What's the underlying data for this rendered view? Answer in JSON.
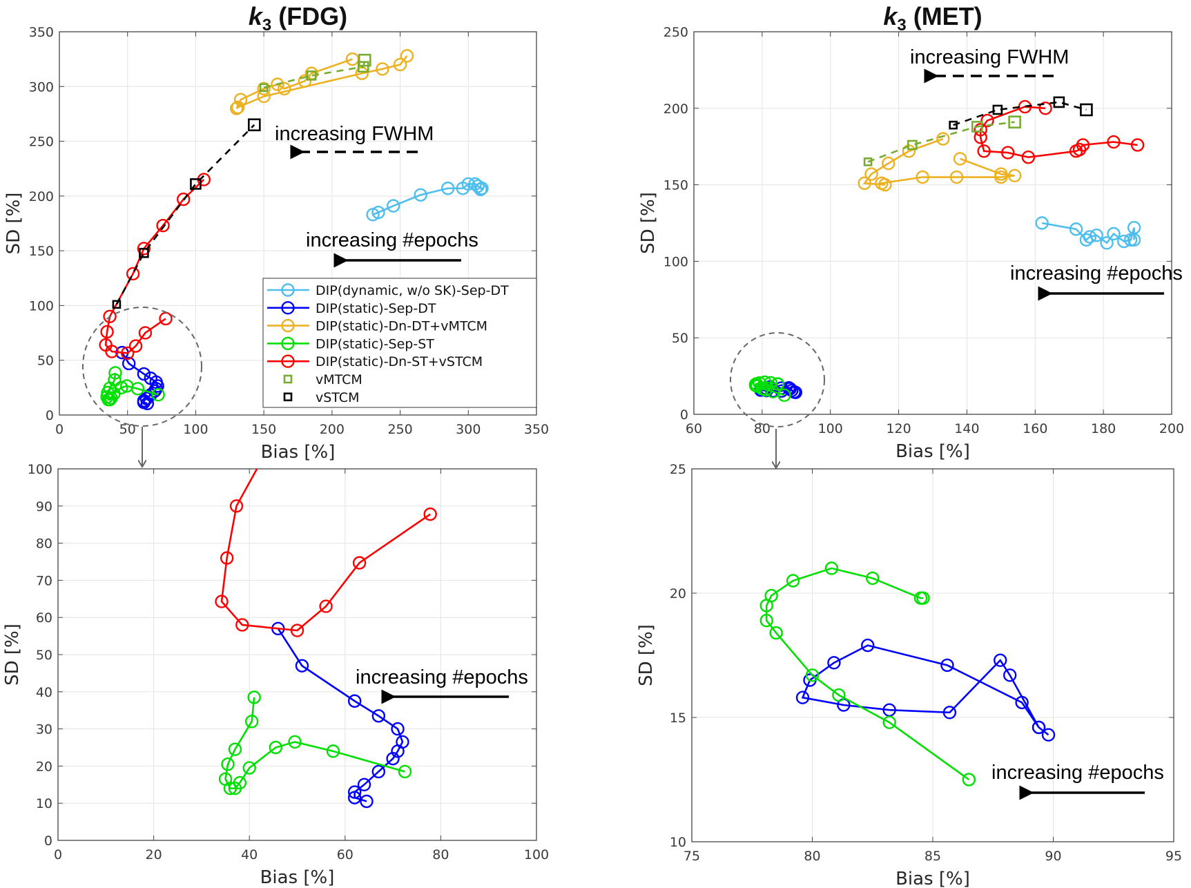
{
  "colors": {
    "DIP(dynamic, w/o SK)-Sep-DT": "#4DBEEE",
    "DIP(static)-Sep-DT": "#0000FF",
    "DIP(static)-Dn-DT+vMTCM": "#EDB120",
    "DIP(static)-Sep-ST": "#00E000",
    "DIP(static)-Dn-ST+vSTCM": "#FF0000",
    "vMTCM": "#77AC30",
    "vSTCM": "#000000"
  },
  "legend_placement": "lower-right (top-left panel)",
  "chart_data": [
    {
      "type": "line",
      "title_main": "k",
      "title_sub": "3",
      "title_rest": " (FDG)",
      "xlabel": "Bias [%]",
      "ylabel": "SD [%]",
      "xlim": [
        0,
        350
      ],
      "ylim": [
        0,
        350
      ],
      "xticks": [
        0,
        50,
        100,
        150,
        200,
        250,
        300,
        350
      ],
      "yticks": [
        0,
        50,
        100,
        150,
        200,
        250,
        300,
        350
      ],
      "grid": true,
      "legend": [
        "DIP(dynamic, w/o SK)-Sep-DT",
        "DIP(static)-Sep-DT",
        "DIP(static)-Dn-DT+vMTCM",
        "DIP(static)-Sep-ST",
        "DIP(static)-Dn-ST+vSTCM",
        "vMTCM",
        "vSTCM"
      ],
      "annotations": [
        "increasing FWHM",
        "increasing #epochs"
      ],
      "series": [
        {
          "name": "DIP(dynamic, w/o SK)-Sep-DT",
          "marker": "circle",
          "x": [
            230,
            234,
            245,
            265,
            285,
            296,
            300,
            305,
            307,
            310,
            309
          ],
          "y": [
            183,
            185,
            191,
            201,
            207,
            207,
            211,
            211,
            209,
            207,
            206
          ]
        },
        {
          "name": "DIP(static)-Sep-DT",
          "marker": "circle",
          "x": [
            46,
            51,
            62,
            67,
            71,
            72,
            71,
            70,
            67,
            64,
            62,
            62,
            64.5
          ],
          "y": [
            57,
            47,
            37.5,
            33.5,
            30,
            26.5,
            24,
            22,
            18.5,
            15,
            13,
            11.5,
            10.5
          ]
        },
        {
          "name": "DIP(static)-Dn-DT+vMTCM",
          "marker": "circle",
          "x": [
            215,
            185,
            180,
            165,
            160,
            150,
            133,
            130,
            131,
            150,
            222,
            237,
            250,
            255
          ],
          "y": [
            325,
            312,
            305,
            298,
            302,
            298,
            288,
            280,
            281,
            291,
            312,
            316,
            320,
            328
          ]
        },
        {
          "name": "DIP(static)-Sep-ST",
          "marker": "circle",
          "x": [
            41,
            40.5,
            37,
            35.5,
            35,
            36,
            37,
            38,
            40,
            45.5,
            49.5,
            57.5,
            72.5
          ],
          "y": [
            38.5,
            32,
            24.5,
            20.5,
            16.5,
            14,
            14,
            15.5,
            19.5,
            25,
            26.5,
            24,
            18.5
          ]
        },
        {
          "name": "DIP(static)-Dn-ST+vSTCM",
          "marker": "circle",
          "x": [
            106,
            91,
            76,
            62,
            54,
            37,
            35,
            34,
            38.5,
            50,
            56,
            63,
            78
          ],
          "y": [
            215,
            197,
            173,
            152,
            129,
            90,
            76,
            64,
            58,
            56.5,
            63,
            75,
            88
          ]
        },
        {
          "name": "vMTCM",
          "marker": "square",
          "dashed": true,
          "x": [
            150,
            185,
            223,
            224
          ],
          "y": [
            299,
            310,
            318,
            324
          ]
        },
        {
          "name": "vSTCM",
          "marker": "square",
          "dashed": true,
          "x": [
            42,
            62,
            100,
            143
          ],
          "y": [
            101,
            148,
            211,
            265
          ]
        }
      ]
    },
    {
      "type": "line",
      "title_main": "k",
      "title_sub": "3",
      "title_rest": " (MET)",
      "xlabel": "Bias [%]",
      "ylabel": "SD [%]",
      "xlim": [
        60,
        200
      ],
      "ylim": [
        0,
        250
      ],
      "xticks": [
        60,
        80,
        100,
        120,
        140,
        160,
        180,
        200
      ],
      "yticks": [
        0,
        50,
        100,
        150,
        200,
        250
      ],
      "grid": true,
      "annotations": [
        "increasing FWHM",
        "increasing #epochs"
      ],
      "series": [
        {
          "name": "DIP(dynamic, w/o SK)-Sep-DT",
          "marker": "circle",
          "x": [
            162,
            172,
            175,
            176,
            178,
            181,
            183,
            186,
            188,
            189,
            189
          ],
          "y": [
            125,
            121,
            114,
            116,
            117,
            112,
            118,
            113,
            114,
            122,
            114
          ]
        },
        {
          "name": "DIP(static)-Sep-DT",
          "marker": "circle",
          "x": [
            89.8,
            89.4,
            88.7,
            85.6,
            82.3,
            80.9,
            79.9,
            79.6,
            81.3,
            83.2,
            85.7,
            87.8,
            88.2,
            89.4
          ],
          "y": [
            14.3,
            14.6,
            15.6,
            17.1,
            17.9,
            17.2,
            16.5,
            15.8,
            15.5,
            15.3,
            15.2,
            17.3,
            16.7,
            14.6
          ]
        },
        {
          "name": "DIP(static)-Dn-DT+vMTCM",
          "marker": "circle",
          "x": [
            133,
            123,
            117,
            112,
            110,
            116,
            115,
            127,
            137,
            150,
            154,
            150,
            138
          ],
          "y": [
            180,
            172,
            164,
            157,
            151,
            150,
            151,
            155,
            155,
            155,
            156,
            157,
            167
          ]
        },
        {
          "name": "DIP(static)-Sep-ST",
          "marker": "circle",
          "x": [
            86.5,
            83.2,
            81.1,
            80,
            78.5,
            78.1,
            78.1,
            78.3,
            79.2,
            80.8,
            82.5,
            84.5,
            84.6
          ],
          "y": [
            12.5,
            14.8,
            15.9,
            16.7,
            18.4,
            18.9,
            19.5,
            19.9,
            20.5,
            21,
            20.6,
            19.8,
            19.8
          ]
        },
        {
          "name": "DIP(static)-Dn-ST+vSTCM",
          "marker": "circle",
          "x": [
            163,
            157,
            146,
            144,
            144,
            145,
            152,
            158,
            172,
            173,
            174,
            183,
            190
          ],
          "y": [
            200,
            201,
            192,
            186,
            181,
            172,
            171,
            168,
            172,
            173,
            176,
            178,
            176
          ]
        },
        {
          "name": "vMTCM",
          "marker": "square",
          "dashed": true,
          "x": [
            111,
            124,
            143,
            154
          ],
          "y": [
            165,
            176,
            188,
            191
          ]
        },
        {
          "name": "vSTCM",
          "marker": "square",
          "dashed": true,
          "x": [
            136,
            149,
            167,
            175
          ],
          "y": [
            189,
            199,
            204,
            199
          ]
        }
      ]
    },
    {
      "type": "line",
      "xlabel": "Bias [%]",
      "ylabel": "SD [%]",
      "xlim": [
        0,
        100
      ],
      "ylim": [
        0,
        100
      ],
      "xticks": [
        0,
        20,
        40,
        60,
        80,
        100
      ],
      "yticks": [
        0,
        10,
        20,
        30,
        40,
        50,
        60,
        70,
        80,
        90,
        100
      ],
      "grid": true,
      "annotations": [
        "increasing #epochs"
      ],
      "series": [
        {
          "name": "DIP(static)-Sep-DT",
          "marker": "circle",
          "x": [
            46,
            51,
            62,
            67,
            71,
            72,
            71,
            70,
            67,
            64,
            62,
            62,
            64.5
          ],
          "y": [
            57,
            47,
            37.5,
            33.5,
            30,
            26.5,
            24,
            22,
            18.5,
            15,
            13,
            11.5,
            10.5
          ]
        },
        {
          "name": "DIP(static)-Sep-ST",
          "marker": "circle",
          "x": [
            41,
            40.5,
            37,
            35.5,
            35,
            36,
            37,
            38,
            40,
            45.5,
            49.5,
            57.5,
            72.5
          ],
          "y": [
            38.5,
            32,
            24.5,
            20.5,
            16.5,
            14,
            14,
            15.5,
            19.5,
            25,
            26.5,
            24,
            18.5
          ]
        },
        {
          "name": "DIP(static)-Dn-ST+vSTCM",
          "marker": "circle",
          "x": [
            54,
            37.3,
            35.3,
            34.2,
            38.5,
            50,
            56,
            63,
            77.8
          ],
          "y": [
            129,
            90,
            76,
            64.3,
            58,
            56.5,
            63,
            74.7,
            87.8
          ]
        }
      ]
    },
    {
      "type": "line",
      "xlabel": "Bias [%]",
      "ylabel": "SD [%]",
      "xlim": [
        75,
        95
      ],
      "ylim": [
        10,
        25
      ],
      "xticks": [
        75,
        80,
        85,
        90,
        95
      ],
      "yticks": [
        10,
        15,
        20,
        25
      ],
      "grid": true,
      "annotations": [
        "increasing #epochs"
      ],
      "series": [
        {
          "name": "DIP(static)-Sep-DT",
          "marker": "circle",
          "x": [
            89.8,
            89.4,
            88.7,
            85.6,
            82.3,
            80.9,
            79.9,
            79.6,
            81.3,
            83.2,
            85.7,
            87.8,
            88.2,
            89.4
          ],
          "y": [
            14.3,
            14.6,
            15.6,
            17.1,
            17.9,
            17.2,
            16.5,
            15.8,
            15.5,
            15.3,
            15.2,
            17.3,
            16.7,
            14.6
          ]
        },
        {
          "name": "DIP(static)-Sep-ST",
          "marker": "circle",
          "x": [
            86.5,
            83.2,
            81.1,
            80,
            78.5,
            78.1,
            78.1,
            78.3,
            79.2,
            80.8,
            82.5,
            84.5,
            84.6
          ],
          "y": [
            12.5,
            14.8,
            15.9,
            16.7,
            18.4,
            18.9,
            19.5,
            19.9,
            20.5,
            21,
            20.6,
            19.8,
            19.8
          ]
        }
      ]
    }
  ]
}
